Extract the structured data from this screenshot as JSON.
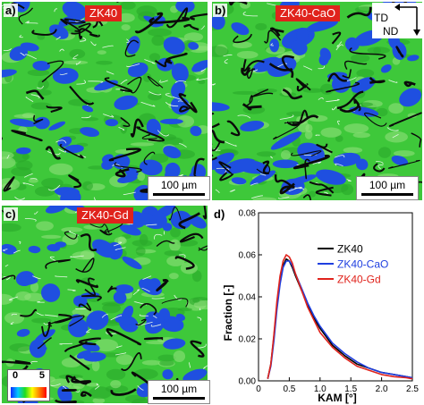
{
  "panels": [
    {
      "letter": "a)",
      "sample": "ZK40",
      "scale": "100 µm",
      "seed": 11,
      "density": 1.0
    },
    {
      "letter": "b)",
      "sample": "ZK40-CaO",
      "scale": "100 µm",
      "seed": 37,
      "density": 1.4
    },
    {
      "letter": "c)",
      "sample": "ZK40-Gd",
      "scale": "100 µm",
      "seed": 73,
      "density": 1.1
    }
  ],
  "axes_key": {
    "td": "TD",
    "nd": "ND"
  },
  "kam_key": {
    "min": "0",
    "max": "5"
  },
  "colors": {
    "background_green": "#3ec83a",
    "grain_blue": "#1f4fe0",
    "boundary": "#0a0a0a",
    "label_red": "#e0231c"
  },
  "chart_data": {
    "type": "line",
    "panel_letter": "d)",
    "xlabel": "KAM [°]",
    "ylabel": "Fraction [-]",
    "xlim": [
      0,
      2.5
    ],
    "ylim": [
      0,
      0.08
    ],
    "xticks": [
      "0",
      "0.5",
      "1.0",
      "1.5",
      "2.0",
      "2.5"
    ],
    "yticks": [
      "0.00",
      "0.02",
      "0.04",
      "0.06",
      "0.08"
    ],
    "legend_position": "top-right",
    "x": [
      0.15,
      0.2,
      0.25,
      0.3,
      0.35,
      0.4,
      0.45,
      0.5,
      0.55,
      0.6,
      0.7,
      0.8,
      0.9,
      1.0,
      1.2,
      1.4,
      1.6,
      1.8,
      2.0,
      2.2,
      2.4,
      2.5
    ],
    "series": [
      {
        "name": "ZK40",
        "color": "#000000",
        "values": [
          0.001,
          0.008,
          0.021,
          0.036,
          0.048,
          0.055,
          0.058,
          0.057,
          0.054,
          0.05,
          0.043,
          0.036,
          0.03,
          0.025,
          0.017,
          0.012,
          0.008,
          0.006,
          0.004,
          0.003,
          0.002,
          0.0015
        ]
      },
      {
        "name": "ZK40-CaO",
        "color": "#1f3fe0",
        "values": [
          0.001,
          0.007,
          0.019,
          0.034,
          0.046,
          0.054,
          0.057,
          0.057,
          0.055,
          0.051,
          0.044,
          0.037,
          0.031,
          0.026,
          0.018,
          0.013,
          0.009,
          0.006,
          0.004,
          0.003,
          0.002,
          0.0015
        ]
      },
      {
        "name": "ZK40-Gd",
        "color": "#e0231c",
        "values": [
          0.001,
          0.008,
          0.022,
          0.038,
          0.05,
          0.057,
          0.06,
          0.059,
          0.056,
          0.051,
          0.043,
          0.035,
          0.029,
          0.023,
          0.016,
          0.011,
          0.007,
          0.005,
          0.003,
          0.002,
          0.0015,
          0.001
        ]
      }
    ]
  }
}
